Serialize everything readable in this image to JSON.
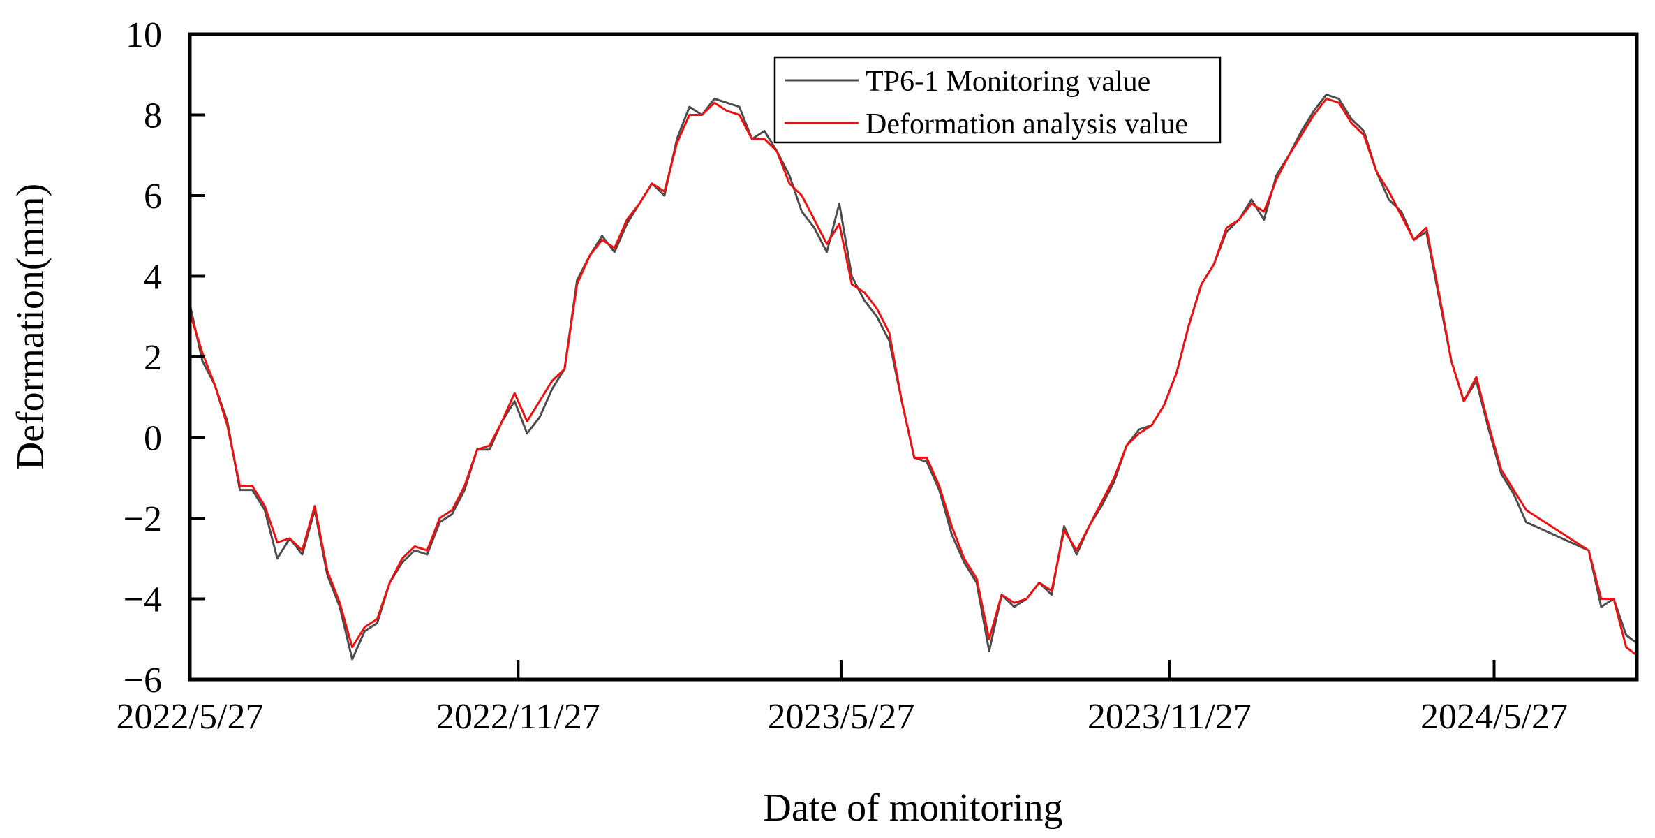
{
  "chart_data": {
    "type": "line",
    "title": "",
    "xlabel": "Date of monitoring",
    "ylabel": "Deformation(mm)",
    "x_range": [
      "2022/5/27",
      "2024/8/15"
    ],
    "x_ticks": [
      "2022/5/27",
      "2022/11/27",
      "2023/5/27",
      "2023/11/27",
      "2024/5/27"
    ],
    "ylim": [
      -6,
      10
    ],
    "y_ticks": [
      -6,
      -4,
      -2,
      0,
      2,
      4,
      6,
      8,
      10
    ],
    "grid": false,
    "legend_position": "top-center",
    "series": [
      {
        "name": "TP6-1 Monitoring value",
        "color": "#4d4d4d",
        "points": [
          [
            "2022/5/27",
            3.3
          ],
          [
            "2022/6/3",
            1.9
          ],
          [
            "2022/6/10",
            1.3
          ],
          [
            "2022/6/17",
            0.4
          ],
          [
            "2022/6/24",
            -1.3
          ],
          [
            "2022/7/1",
            -1.3
          ],
          [
            "2022/7/8",
            -1.8
          ],
          [
            "2022/7/15",
            -3.0
          ],
          [
            "2022/7/22",
            -2.5
          ],
          [
            "2022/7/29",
            -2.9
          ],
          [
            "2022/8/5",
            -1.8
          ],
          [
            "2022/8/12",
            -3.4
          ],
          [
            "2022/8/19",
            -4.2
          ],
          [
            "2022/8/26",
            -5.5
          ],
          [
            "2022/9/2",
            -4.8
          ],
          [
            "2022/9/9",
            -4.6
          ],
          [
            "2022/9/16",
            -3.6
          ],
          [
            "2022/9/23",
            -3.1
          ],
          [
            "2022/9/30",
            -2.8
          ],
          [
            "2022/10/7",
            -2.9
          ],
          [
            "2022/10/14",
            -2.1
          ],
          [
            "2022/10/21",
            -1.9
          ],
          [
            "2022/10/28",
            -1.3
          ],
          [
            "2022/11/4",
            -0.3
          ],
          [
            "2022/11/11",
            -0.3
          ],
          [
            "2022/11/18",
            0.4
          ],
          [
            "2022/11/25",
            0.9
          ],
          [
            "2022/12/2",
            0.1
          ],
          [
            "2022/12/9",
            0.5
          ],
          [
            "2022/12/16",
            1.2
          ],
          [
            "2022/12/23",
            1.7
          ],
          [
            "2022/12/30",
            3.9
          ],
          [
            "2023/1/6",
            4.5
          ],
          [
            "2023/1/13",
            5.0
          ],
          [
            "2023/1/20",
            4.6
          ],
          [
            "2023/1/27",
            5.3
          ],
          [
            "2023/2/3",
            5.8
          ],
          [
            "2023/2/10",
            6.3
          ],
          [
            "2023/2/17",
            6.0
          ],
          [
            "2023/2/24",
            7.4
          ],
          [
            "2023/3/3",
            8.2
          ],
          [
            "2023/3/10",
            8.0
          ],
          [
            "2023/3/17",
            8.4
          ],
          [
            "2023/3/24",
            8.3
          ],
          [
            "2023/3/31",
            8.2
          ],
          [
            "2023/4/7",
            7.4
          ],
          [
            "2023/4/14",
            7.6
          ],
          [
            "2023/4/21",
            7.1
          ],
          [
            "2023/4/28",
            6.5
          ],
          [
            "2023/5/5",
            5.6
          ],
          [
            "2023/5/12",
            5.2
          ],
          [
            "2023/5/19",
            4.6
          ],
          [
            "2023/5/26",
            5.8
          ],
          [
            "2023/6/2",
            4.0
          ],
          [
            "2023/6/9",
            3.4
          ],
          [
            "2023/6/16",
            3.0
          ],
          [
            "2023/6/23",
            2.4
          ],
          [
            "2023/6/30",
            0.9
          ],
          [
            "2023/7/7",
            -0.5
          ],
          [
            "2023/7/14",
            -0.6
          ],
          [
            "2023/7/21",
            -1.3
          ],
          [
            "2023/7/28",
            -2.4
          ],
          [
            "2023/8/4",
            -3.1
          ],
          [
            "2023/8/11",
            -3.6
          ],
          [
            "2023/8/18",
            -5.3
          ],
          [
            "2023/8/25",
            -3.9
          ],
          [
            "2023/9/1",
            -4.2
          ],
          [
            "2023/9/8",
            -4.0
          ],
          [
            "2023/9/15",
            -3.6
          ],
          [
            "2023/9/22",
            -3.9
          ],
          [
            "2023/9/29",
            -2.2
          ],
          [
            "2023/10/6",
            -2.9
          ],
          [
            "2023/10/13",
            -2.2
          ],
          [
            "2023/10/20",
            -1.7
          ],
          [
            "2023/10/27",
            -1.1
          ],
          [
            "2023/11/3",
            -0.2
          ],
          [
            "2023/11/10",
            0.2
          ],
          [
            "2023/11/17",
            0.3
          ],
          [
            "2023/11/24",
            0.8
          ],
          [
            "2023/12/1",
            1.6
          ],
          [
            "2023/12/8",
            2.8
          ],
          [
            "2023/12/15",
            3.8
          ],
          [
            "2023/12/22",
            4.3
          ],
          [
            "2023/12/29",
            5.1
          ],
          [
            "2024/1/5",
            5.4
          ],
          [
            "2024/1/12",
            5.9
          ],
          [
            "2024/1/19",
            5.4
          ],
          [
            "2024/1/26",
            6.5
          ],
          [
            "2024/2/2",
            7.0
          ],
          [
            "2024/2/9",
            7.6
          ],
          [
            "2024/2/16",
            8.1
          ],
          [
            "2024/2/23",
            8.5
          ],
          [
            "2024/3/1",
            8.4
          ],
          [
            "2024/3/8",
            7.9
          ],
          [
            "2024/3/15",
            7.6
          ],
          [
            "2024/3/22",
            6.6
          ],
          [
            "2024/3/29",
            5.9
          ],
          [
            "2024/4/5",
            5.6
          ],
          [
            "2024/4/12",
            4.9
          ],
          [
            "2024/4/19",
            5.1
          ],
          [
            "2024/4/26",
            3.5
          ],
          [
            "2024/5/3",
            1.9
          ],
          [
            "2024/5/10",
            0.9
          ],
          [
            "2024/5/17",
            1.4
          ],
          [
            "2024/5/24",
            0.2
          ],
          [
            "2024/5/31",
            -0.9
          ],
          [
            "2024/6/7",
            -1.4
          ],
          [
            "2024/6/14",
            -2.1
          ],
          [
            "2024/7/19",
            -2.8
          ],
          [
            "2024/7/26",
            -4.2
          ],
          [
            "2024/8/2",
            -4.0
          ],
          [
            "2024/8/9",
            -4.9
          ],
          [
            "2024/8/15",
            -5.1
          ]
        ]
      },
      {
        "name": "Deformation analysis value",
        "color": "#ee1111",
        "points": [
          [
            "2022/5/27",
            3.1
          ],
          [
            "2022/6/3",
            2.1
          ],
          [
            "2022/6/10",
            1.3
          ],
          [
            "2022/6/17",
            0.3
          ],
          [
            "2022/6/24",
            -1.2
          ],
          [
            "2022/7/1",
            -1.2
          ],
          [
            "2022/7/8",
            -1.7
          ],
          [
            "2022/7/15",
            -2.6
          ],
          [
            "2022/7/22",
            -2.5
          ],
          [
            "2022/7/29",
            -2.8
          ],
          [
            "2022/8/5",
            -1.7
          ],
          [
            "2022/8/12",
            -3.3
          ],
          [
            "2022/8/19",
            -4.1
          ],
          [
            "2022/8/26",
            -5.2
          ],
          [
            "2022/9/2",
            -4.7
          ],
          [
            "2022/9/9",
            -4.5
          ],
          [
            "2022/9/16",
            -3.6
          ],
          [
            "2022/9/23",
            -3.0
          ],
          [
            "2022/9/30",
            -2.7
          ],
          [
            "2022/10/7",
            -2.8
          ],
          [
            "2022/10/14",
            -2.0
          ],
          [
            "2022/10/21",
            -1.8
          ],
          [
            "2022/10/28",
            -1.2
          ],
          [
            "2022/11/4",
            -0.3
          ],
          [
            "2022/11/11",
            -0.2
          ],
          [
            "2022/11/18",
            0.4
          ],
          [
            "2022/11/25",
            1.1
          ],
          [
            "2022/12/2",
            0.4
          ],
          [
            "2022/12/9",
            0.9
          ],
          [
            "2022/12/16",
            1.4
          ],
          [
            "2022/12/23",
            1.7
          ],
          [
            "2022/12/30",
            3.8
          ],
          [
            "2023/1/6",
            4.5
          ],
          [
            "2023/1/13",
            4.9
          ],
          [
            "2023/1/20",
            4.7
          ],
          [
            "2023/1/27",
            5.4
          ],
          [
            "2023/2/3",
            5.8
          ],
          [
            "2023/2/10",
            6.3
          ],
          [
            "2023/2/17",
            6.1
          ],
          [
            "2023/2/24",
            7.3
          ],
          [
            "2023/3/3",
            8.0
          ],
          [
            "2023/3/10",
            8.0
          ],
          [
            "2023/3/17",
            8.3
          ],
          [
            "2023/3/24",
            8.1
          ],
          [
            "2023/3/31",
            8.0
          ],
          [
            "2023/4/7",
            7.4
          ],
          [
            "2023/4/14",
            7.4
          ],
          [
            "2023/4/21",
            7.1
          ],
          [
            "2023/4/28",
            6.3
          ],
          [
            "2023/5/5",
            6.0
          ],
          [
            "2023/5/12",
            5.4
          ],
          [
            "2023/5/19",
            4.8
          ],
          [
            "2023/5/26",
            5.3
          ],
          [
            "2023/6/2",
            3.8
          ],
          [
            "2023/6/9",
            3.6
          ],
          [
            "2023/6/16",
            3.2
          ],
          [
            "2023/6/23",
            2.6
          ],
          [
            "2023/6/30",
            0.9
          ],
          [
            "2023/7/7",
            -0.5
          ],
          [
            "2023/7/14",
            -0.5
          ],
          [
            "2023/7/21",
            -1.2
          ],
          [
            "2023/7/28",
            -2.2
          ],
          [
            "2023/8/4",
            -3.0
          ],
          [
            "2023/8/11",
            -3.5
          ],
          [
            "2023/8/18",
            -5.0
          ],
          [
            "2023/8/25",
            -3.9
          ],
          [
            "2023/9/1",
            -4.1
          ],
          [
            "2023/9/8",
            -4.0
          ],
          [
            "2023/9/15",
            -3.6
          ],
          [
            "2023/9/22",
            -3.8
          ],
          [
            "2023/9/29",
            -2.3
          ],
          [
            "2023/10/6",
            -2.8
          ],
          [
            "2023/10/13",
            -2.2
          ],
          [
            "2023/10/20",
            -1.6
          ],
          [
            "2023/10/27",
            -1.0
          ],
          [
            "2023/11/3",
            -0.2
          ],
          [
            "2023/11/10",
            0.1
          ],
          [
            "2023/11/17",
            0.3
          ],
          [
            "2023/11/24",
            0.8
          ],
          [
            "2023/12/1",
            1.6
          ],
          [
            "2023/12/8",
            2.8
          ],
          [
            "2023/12/15",
            3.8
          ],
          [
            "2023/12/22",
            4.3
          ],
          [
            "2023/12/29",
            5.2
          ],
          [
            "2024/1/5",
            5.4
          ],
          [
            "2024/1/12",
            5.8
          ],
          [
            "2024/1/19",
            5.6
          ],
          [
            "2024/1/26",
            6.4
          ],
          [
            "2024/2/2",
            7.0
          ],
          [
            "2024/2/9",
            7.5
          ],
          [
            "2024/2/16",
            8.0
          ],
          [
            "2024/2/23",
            8.4
          ],
          [
            "2024/3/1",
            8.3
          ],
          [
            "2024/3/8",
            7.8
          ],
          [
            "2024/3/15",
            7.5
          ],
          [
            "2024/3/22",
            6.6
          ],
          [
            "2024/3/29",
            6.1
          ],
          [
            "2024/4/5",
            5.5
          ],
          [
            "2024/4/12",
            4.9
          ],
          [
            "2024/4/19",
            5.2
          ],
          [
            "2024/4/26",
            3.6
          ],
          [
            "2024/5/3",
            1.9
          ],
          [
            "2024/5/10",
            0.9
          ],
          [
            "2024/5/17",
            1.5
          ],
          [
            "2024/5/24",
            0.3
          ],
          [
            "2024/5/31",
            -0.8
          ],
          [
            "2024/6/7",
            -1.3
          ],
          [
            "2024/6/14",
            -1.8
          ],
          [
            "2024/7/19",
            -2.8
          ],
          [
            "2024/7/26",
            -4.0
          ],
          [
            "2024/8/2",
            -4.0
          ],
          [
            "2024/8/9",
            -5.2
          ],
          [
            "2024/8/15",
            -5.4
          ]
        ]
      }
    ]
  }
}
